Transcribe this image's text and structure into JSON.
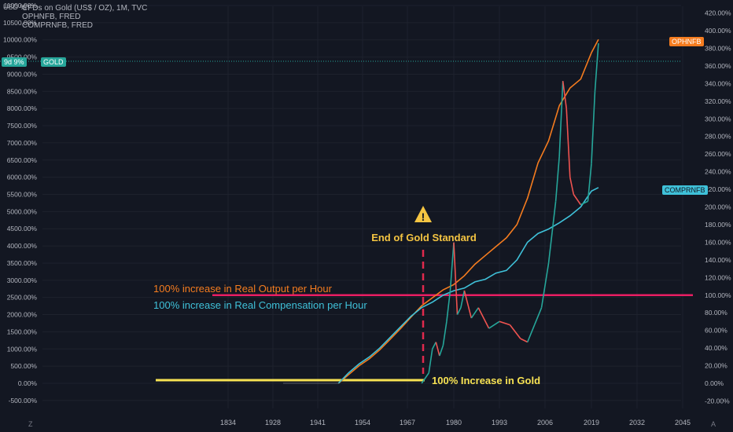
{
  "header": {
    "currency": "USD",
    "pct_symbol": "%",
    "symbol_line": "CFDs on Gold (US$ / OZ), 1M, TVC",
    "overlay_1": "OPHNFB, FRED",
    "overlay_2": "COMPRNFB, FRED"
  },
  "tags": {
    "left_value": "9d 9%",
    "left_symbol": "GOLD",
    "ophnfb": "OPHNFB",
    "comprnfb": "COMPRNFB"
  },
  "footer": {
    "left_icon": "Z",
    "right_icon": "A"
  },
  "colors": {
    "background": "#131722",
    "gold_up": "#26a69a",
    "gold_down": "#ef5350",
    "ophnfb": "#f57c1f",
    "comprnfb": "#3fc1d9",
    "hundred_line": "#e91e63",
    "gold_baseline": "#f7e253",
    "annotation_gold": "#f5c542",
    "annotation_orange": "#f57c1f",
    "annotation_cyan": "#3fc1d9"
  },
  "chart_data": {
    "type": "line",
    "x_axis_labels": [
      "1834",
      "1928",
      "1941",
      "1954",
      "1967",
      "1980",
      "1993",
      "2006",
      "2019",
      "2032",
      "2045"
    ],
    "left_axis": {
      "labels": [
        "11000.00%",
        "10500.00%",
        "10000.00%",
        "9500.00%",
        "9000.00%",
        "8500.00%",
        "8000.00%",
        "7500.00%",
        "7000.00%",
        "6500.00%",
        "6000.00%",
        "5500.00%",
        "5000.00%",
        "4500.00%",
        "4000.00%",
        "3500.00%",
        "3000.00%",
        "2500.00%",
        "2000.00%",
        "1500.00%",
        "1000.00%",
        "500.00%",
        "0.00%",
        "-500.00%"
      ],
      "values": [
        11000,
        10500,
        10000,
        9500,
        9000,
        8500,
        8000,
        7500,
        7000,
        6500,
        6000,
        5500,
        5000,
        4500,
        4000,
        3500,
        3000,
        2500,
        2000,
        1500,
        1000,
        500,
        0,
        -500
      ]
    },
    "right_axis": {
      "labels": [
        "420.00%",
        "400.00%",
        "380.00%",
        "360.00%",
        "340.00%",
        "320.00%",
        "300.00%",
        "280.00%",
        "260.00%",
        "240.00%",
        "220.00%",
        "200.00%",
        "180.00%",
        "160.00%",
        "140.00%",
        "120.00%",
        "100.00%",
        "80.00%",
        "60.00%",
        "40.00%",
        "20.00%",
        "0.00%",
        "-20.00%"
      ],
      "values": [
        420,
        400,
        380,
        360,
        340,
        320,
        300,
        280,
        260,
        240,
        220,
        200,
        180,
        160,
        140,
        120,
        100,
        80,
        60,
        40,
        20,
        0,
        -20
      ]
    },
    "series": [
      {
        "name": "OPHNFB",
        "axis": "right",
        "x": [
          1947,
          1950,
          1953,
          1956,
          1959,
          1962,
          1965,
          1968,
          1971,
          1974,
          1977,
          1980,
          1983,
          1986,
          1989,
          1992,
          1995,
          1998,
          2001,
          2004,
          2007,
          2010,
          2013,
          2016,
          2019,
          2021
        ],
        "y": [
          0,
          10,
          20,
          28,
          38,
          50,
          62,
          75,
          88,
          97,
          106,
          112,
          122,
          135,
          145,
          155,
          165,
          180,
          210,
          250,
          275,
          315,
          335,
          345,
          375,
          390
        ]
      },
      {
        "name": "COMPRNFB",
        "axis": "right",
        "x": [
          1947,
          1950,
          1953,
          1956,
          1959,
          1962,
          1965,
          1968,
          1971,
          1974,
          1977,
          1980,
          1983,
          1986,
          1989,
          1992,
          1995,
          1998,
          2001,
          2004,
          2007,
          2010,
          2013,
          2016,
          2019,
          2021
        ],
        "y": [
          0,
          12,
          22,
          30,
          40,
          52,
          64,
          76,
          86,
          92,
          100,
          105,
          108,
          115,
          118,
          125,
          128,
          140,
          160,
          170,
          175,
          182,
          190,
          200,
          218,
          222
        ]
      },
      {
        "name": "GOLD",
        "axis": "left",
        "x": [
          1971,
          1973,
          1974,
          1975,
          1976,
          1977,
          1978,
          1979,
          1980,
          1981,
          1982,
          1983,
          1985,
          1987,
          1990,
          1993,
          1996,
          1999,
          2001,
          2003,
          2005,
          2007,
          2008,
          2009,
          2010,
          2011,
          2012,
          2013,
          2014,
          2016,
          2018,
          2019,
          2020,
          2021
        ],
        "y": [
          0,
          300,
          1000,
          1200,
          800,
          1100,
          1800,
          2700,
          4100,
          2000,
          2200,
          2700,
          1900,
          2200,
          1600,
          1800,
          1700,
          1300,
          1200,
          1700,
          2200,
          3500,
          4400,
          5300,
          6600,
          8800,
          8000,
          6000,
          5500,
          5200,
          5300,
          6400,
          8500,
          9900
        ]
      }
    ],
    "reference_lines": [
      {
        "label": "100% increase in Real Output per Hour",
        "value": 100,
        "axis": "right"
      },
      {
        "label": "100% Increase in Gold",
        "value": 100,
        "axis": "left"
      }
    ],
    "annotations": {
      "gold_standard_label": "End of Gold Standard",
      "gold_standard_year": 1971,
      "output_label": "100% increase in Real Output per Hour",
      "compensation_label": "100% increase in Real Compensation per Hour",
      "gold_label": "100% Increase in Gold",
      "warning_icon": "warning-triangle-icon"
    }
  }
}
